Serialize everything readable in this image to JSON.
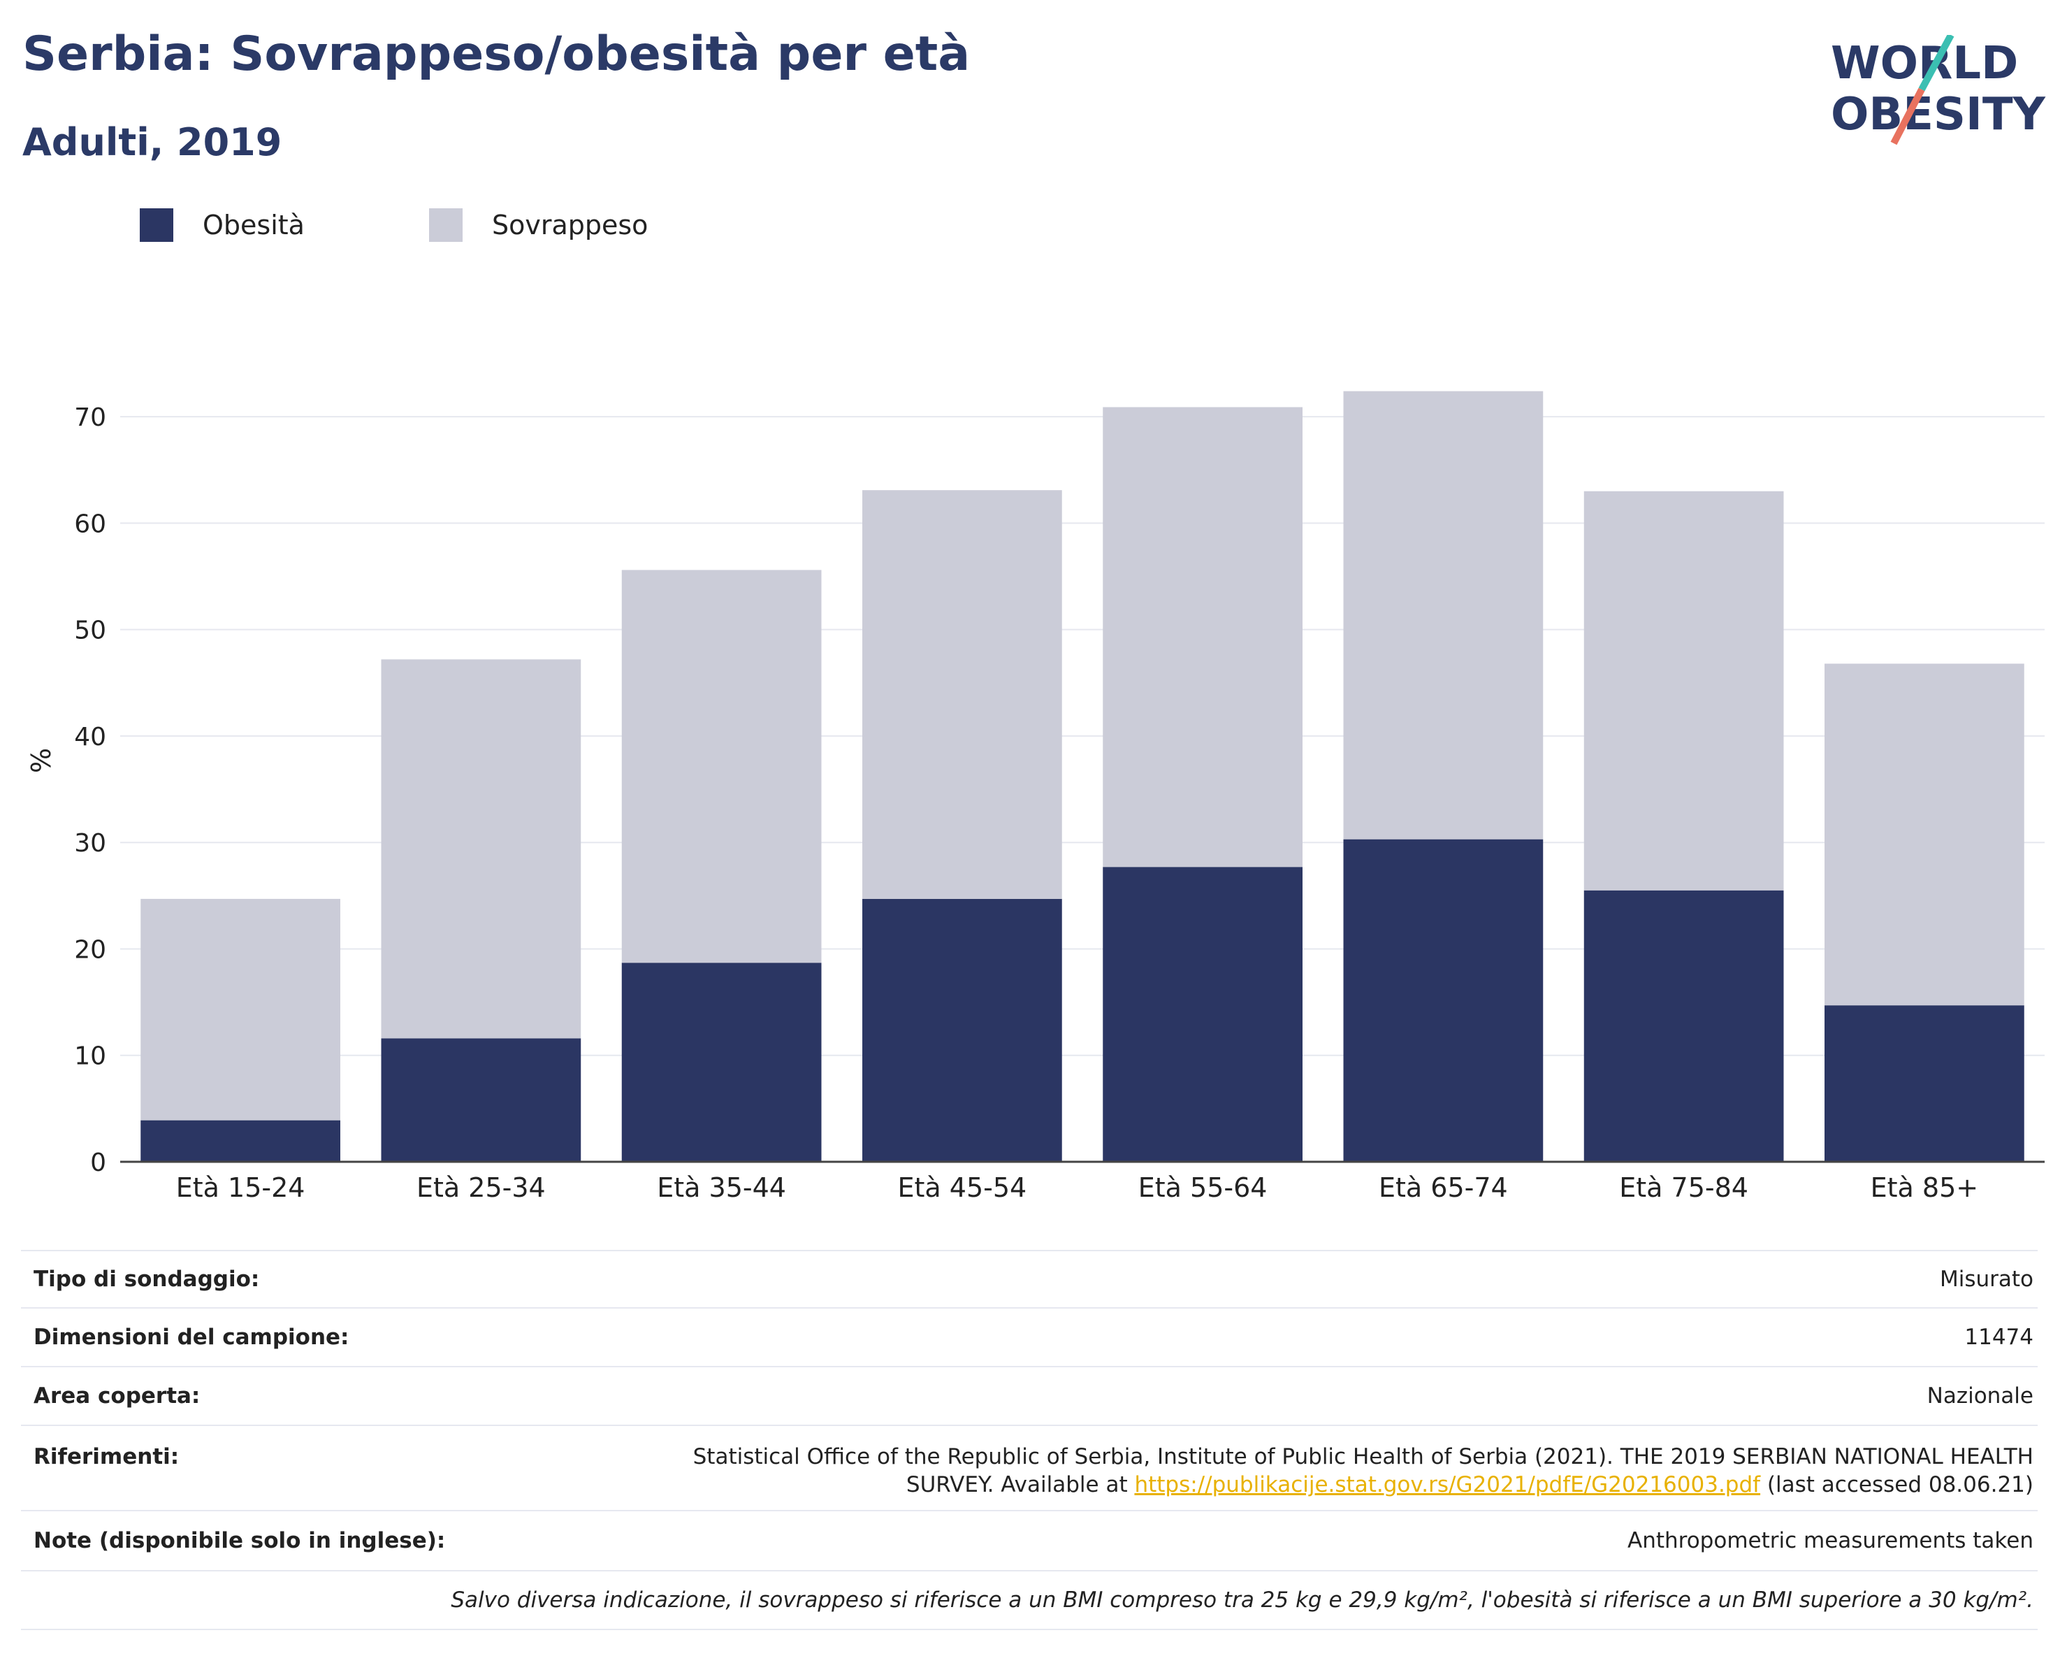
{
  "header": {
    "title": "Serbia: Sovrappeso/obesità per età",
    "subtitle": "Adulti, 2019"
  },
  "logo": {
    "line1": "WORLD",
    "line2": "OBESITY"
  },
  "colors": {
    "obesity": "#2b3663",
    "overweight": "#cbccd8",
    "title": "#2b3a67",
    "link": "#e8b100",
    "logo_teal": "#3bbfb2",
    "logo_coral": "#e8725f"
  },
  "chart_data": {
    "type": "bar",
    "stacked": true,
    "title": "Serbia: Sovrappeso/obesità per età",
    "subtitle": "Adulti, 2019",
    "xlabel": "",
    "ylabel": "%",
    "ylim": [
      0,
      75
    ],
    "yticks": [
      0,
      10,
      20,
      30,
      40,
      50,
      60,
      70
    ],
    "grid": true,
    "legend_position": "top-left",
    "categories": [
      "Età 15-24",
      "Età 25-34",
      "Età 35-44",
      "Età 45-54",
      "Età 55-64",
      "Età 65-74",
      "Età 75-84",
      "Età 85+"
    ],
    "series": [
      {
        "name": "Obesità",
        "values": [
          3.9,
          11.6,
          18.7,
          24.7,
          27.7,
          30.3,
          25.5,
          14.7
        ]
      },
      {
        "name": "Sovrappeso",
        "values": [
          20.8,
          35.6,
          36.9,
          38.4,
          43.2,
          42.1,
          37.5,
          32.1
        ]
      }
    ]
  },
  "info": {
    "survey_type": {
      "label": "Tipo di sondaggio:",
      "value": "Misurato"
    },
    "sample_size": {
      "label": "Dimensioni del campione:",
      "value": "11474"
    },
    "area": {
      "label": "Area coperta:",
      "value": "Nazionale"
    },
    "references": {
      "label": "Riferimenti:",
      "line1": "Statistical Office of the Republic of Serbia, Institute of Public Health of Serbia (2021). THE 2019 SERBIAN NATIONAL HEALTH",
      "line2_prefix": "SURVEY. Available at ",
      "link": "https://publikacije.stat.gov.rs/G2021/pdfE/G20216003.pdf",
      "line2_suffix": " (last accessed 08.06.21)"
    },
    "notes": {
      "label": "Note (disponibile solo in inglese):",
      "value": "Anthropometric measurements taken"
    },
    "footnote": "Salvo diversa indicazione, il sovrappeso si riferisce a un BMI compreso tra 25 kg e 29,9 kg/m², l'obesità si riferisce a un BMI superiore a 30 kg/m²."
  }
}
